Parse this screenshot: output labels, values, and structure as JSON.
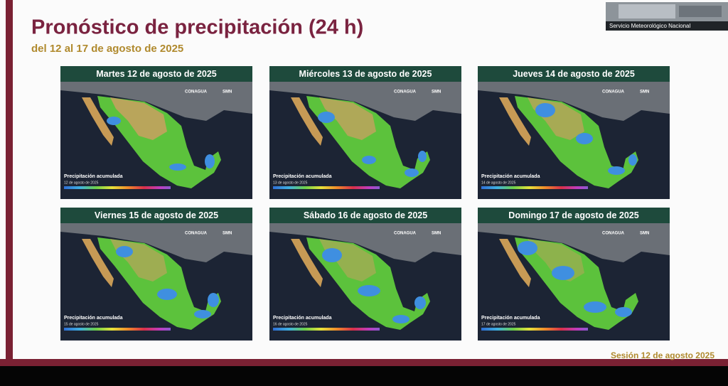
{
  "header": {
    "title": "Pronóstico de precipitación (24 h)",
    "subtitle": "del 12 al 17 de agosto de 2025"
  },
  "video": {
    "label": "Servicio Meteorológico Nacional"
  },
  "panels": [
    {
      "title": "Martes 12 de agosto de 2025",
      "date": "12 de agosto de 2025"
    },
    {
      "title": "Miércoles 13 de agosto de 2025",
      "date": "13 de agosto de 2025"
    },
    {
      "title": "Jueves 14 de agosto de 2025",
      "date": "14 de agosto de 2025"
    },
    {
      "title": "Viernes 15 de agosto de 2025",
      "date": "15 de agosto de 2025"
    },
    {
      "title": "Sábado 16 de agosto de 2025",
      "date": "16 de agosto de 2025"
    },
    {
      "title": "Domingo 17 de agosto de 2025",
      "date": "17 de agosto de 2025"
    }
  ],
  "map_labels": {
    "legend": "Precipitación acumulada",
    "logo1": "CONAGUA",
    "logo2": "SMN"
  },
  "footer": {
    "session": "Sesión 12 de agosto 2025"
  }
}
